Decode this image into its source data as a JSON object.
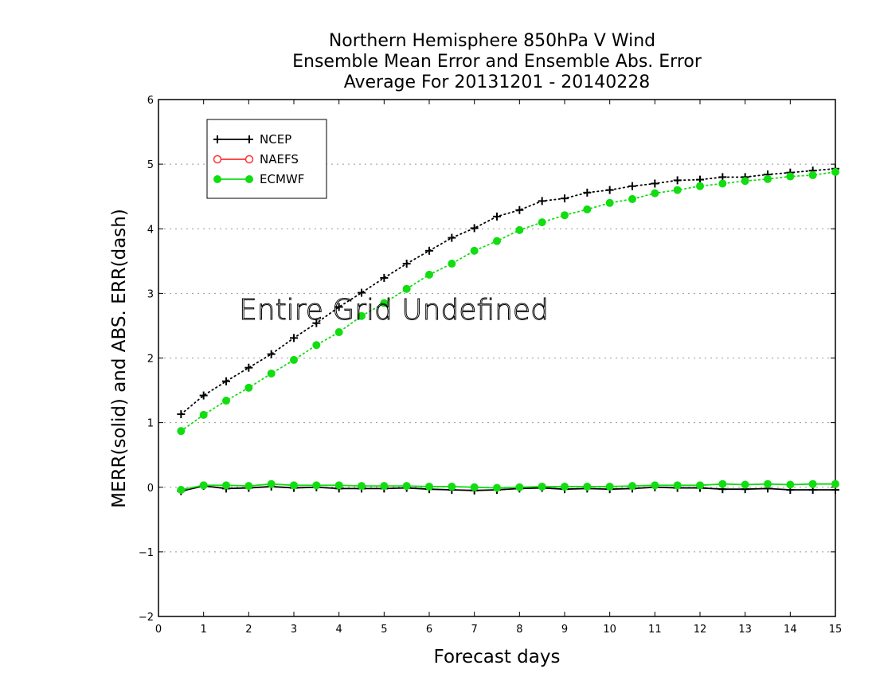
{
  "chart_data": {
    "type": "line",
    "title": [
      "Northern Hemisphere 850hPa V Wind",
      "Ensemble Mean Error and Ensemble Abs. Error",
      "Average For 20131201 - 20140228"
    ],
    "xlabel": "Forecast days",
    "ylabel": "MERR(solid) and ABS. ERR(dash)",
    "xlim": [
      0,
      15
    ],
    "ylim": [
      -2,
      6
    ],
    "xticks": [
      "0",
      "1",
      "2",
      "3",
      "4",
      "5",
      "6",
      "7",
      "8",
      "9",
      "10",
      "11",
      "12",
      "13",
      "14",
      "15"
    ],
    "yticks": [
      "−2",
      "−1",
      "0",
      "1",
      "2",
      "3",
      "4",
      "5",
      "6"
    ],
    "grid": "horizontal dotted",
    "legend_position": "top-left",
    "overlay_text": "Entire Grid Undefined",
    "x": [
      0.5,
      1.0,
      1.5,
      2.0,
      2.5,
      3.0,
      3.5,
      4.0,
      4.5,
      5.0,
      5.5,
      6.0,
      6.5,
      7.0,
      7.5,
      8.0,
      8.5,
      9.0,
      9.5,
      10.0,
      10.5,
      11.0,
      11.5,
      12.0,
      12.5,
      13.0,
      13.5,
      14.0,
      14.5,
      15.0
    ],
    "series": [
      {
        "name": "NCEP",
        "color": "#000000",
        "marker": "plus",
        "abs_err": [
          1.13,
          1.42,
          1.64,
          1.85,
          2.06,
          2.31,
          2.54,
          2.79,
          3.01,
          3.24,
          3.46,
          3.66,
          3.86,
          4.01,
          4.19,
          4.29,
          4.43,
          4.47,
          4.56,
          4.6,
          4.66,
          4.7,
          4.75,
          4.76,
          4.8,
          4.8,
          4.84,
          4.87,
          4.9,
          4.93
        ],
        "mean_err": [
          -0.06,
          0.02,
          -0.02,
          -0.01,
          0.01,
          -0.01,
          0.0,
          -0.02,
          -0.02,
          -0.02,
          -0.01,
          -0.03,
          -0.04,
          -0.05,
          -0.04,
          -0.02,
          -0.01,
          -0.03,
          -0.02,
          -0.03,
          -0.02,
          0.0,
          -0.01,
          -0.01,
          -0.03,
          -0.03,
          -0.02,
          -0.04,
          -0.04,
          -0.04
        ]
      },
      {
        "name": "NAEFS",
        "color": "#ff3333",
        "marker": "open-circle",
        "abs_err": [],
        "mean_err": []
      },
      {
        "name": "ECMWF",
        "color": "#11dd11",
        "marker": "filled-circle",
        "abs_err": [
          0.87,
          1.12,
          1.34,
          1.54,
          1.76,
          1.97,
          2.2,
          2.4,
          2.65,
          2.85,
          3.07,
          3.29,
          3.46,
          3.66,
          3.81,
          3.98,
          4.1,
          4.21,
          4.3,
          4.4,
          4.46,
          4.55,
          4.6,
          4.66,
          4.7,
          4.74,
          4.77,
          4.81,
          4.83,
          4.88
        ],
        "mean_err": [
          -0.04,
          0.03,
          0.03,
          0.02,
          0.05,
          0.03,
          0.03,
          0.03,
          0.02,
          0.02,
          0.02,
          0.01,
          0.01,
          0.0,
          -0.01,
          0.0,
          0.01,
          0.01,
          0.01,
          0.01,
          0.02,
          0.03,
          0.03,
          0.03,
          0.05,
          0.04,
          0.05,
          0.04,
          0.05,
          0.05
        ]
      }
    ]
  }
}
